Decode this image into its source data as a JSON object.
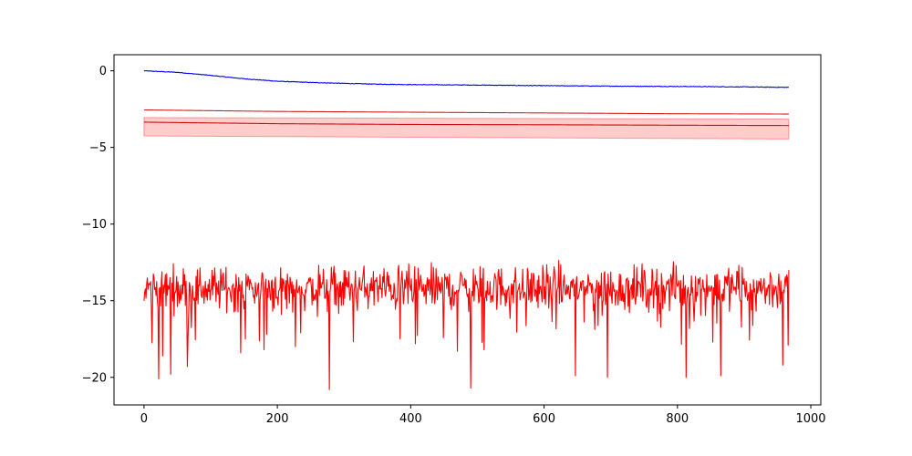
{
  "chart_data": {
    "type": "line",
    "title": "",
    "xlabel": "",
    "ylabel": "",
    "xlim": [
      -45,
      1015
    ],
    "ylim": [
      -21.8,
      1.05
    ],
    "x_ticks": [
      0,
      200,
      400,
      600,
      800,
      1000
    ],
    "y_ticks": [
      0,
      -5,
      -10,
      -15,
      -20
    ],
    "x_tick_labels": [
      "0",
      "200",
      "400",
      "600",
      "800",
      "1000"
    ],
    "y_tick_labels": [
      "0",
      "−5",
      "−10",
      "−15",
      "−20"
    ],
    "grid": false,
    "legend": "none",
    "n_points": 968,
    "band": {
      "color": "#ff0000",
      "alpha": 0.2,
      "lower": [
        [
          0,
          -4.25
        ],
        [
          967,
          -4.45
        ]
      ],
      "upper": [
        [
          0,
          -3.05
        ],
        [
          967,
          -3.15
        ]
      ]
    },
    "series": [
      {
        "color": "#0000ff",
        "style": "noisy-decay",
        "points": [
          [
            0,
            0.0
          ],
          [
            50,
            -0.1
          ],
          [
            100,
            -0.3
          ],
          [
            150,
            -0.52
          ],
          [
            200,
            -0.68
          ],
          [
            250,
            -0.76
          ],
          [
            300,
            -0.82
          ],
          [
            350,
            -0.87
          ],
          [
            400,
            -0.9
          ],
          [
            500,
            -0.93
          ],
          [
            600,
            -0.97
          ],
          [
            700,
            -1.0
          ],
          [
            800,
            -1.02
          ],
          [
            900,
            -1.05
          ],
          [
            967,
            -1.08
          ]
        ],
        "noise": 0.02
      },
      {
        "color": "#d62020",
        "style": "smooth",
        "points": [
          [
            0,
            -2.55
          ],
          [
            200,
            -2.65
          ],
          [
            400,
            -2.7
          ],
          [
            600,
            -2.75
          ],
          [
            800,
            -2.8
          ],
          [
            967,
            -2.82
          ]
        ]
      },
      {
        "color": "#c81010",
        "style": "smooth",
        "points": [
          [
            0,
            -3.35
          ],
          [
            200,
            -3.45
          ],
          [
            400,
            -3.5
          ],
          [
            600,
            -3.52
          ],
          [
            800,
            -3.55
          ],
          [
            967,
            -3.57
          ]
        ]
      },
      {
        "color": "#ff0000",
        "style": "noisy",
        "mean": -14.2,
        "noise": 1.0,
        "spikes": [
          [
            22,
            -20.1
          ],
          [
            28,
            -18.6
          ],
          [
            40,
            -19.8
          ],
          [
            65,
            -19.3
          ],
          [
            145,
            -18.4
          ],
          [
            180,
            -18.2
          ],
          [
            227,
            -18.0
          ],
          [
            278,
            -20.8
          ],
          [
            470,
            -18.3
          ],
          [
            490,
            -20.7
          ],
          [
            510,
            -18.2
          ],
          [
            647,
            -19.9
          ],
          [
            695,
            -20.0
          ],
          [
            813,
            -20.0
          ],
          [
            865,
            -19.9
          ],
          [
            958,
            -19.2
          ],
          [
            966,
            -17.9
          ]
        ]
      }
    ]
  }
}
